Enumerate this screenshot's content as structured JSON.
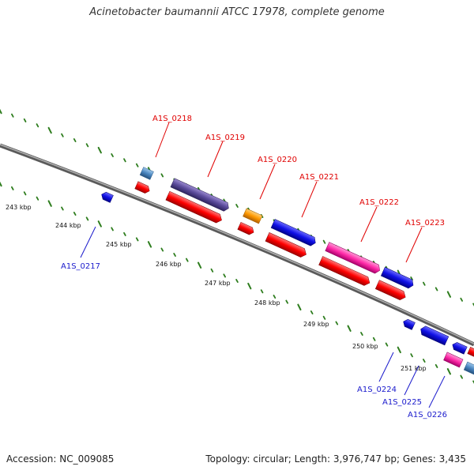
{
  "title": "Acinetobacter baumannii ATCC 17978, complete genome",
  "accession_text": "Accession: NC_009085",
  "topology_text": "Topology: circular; Length: 3,976,747 bp; Genes: 3,435",
  "colors": {
    "backbone": "#888888",
    "tick": "#2e7d1e",
    "label_forward": "#e00000",
    "label_reverse": "#1a1acc",
    "gene_red": "#ff0000",
    "gene_blue": "#1010e6",
    "gene_purple": "#5a4a9a",
    "gene_steelblue": "#4a86c0",
    "gene_orange": "#ff9900",
    "gene_magenta": "#ff2aa8"
  },
  "scale_labels": [
    "243 kbp",
    "244 kbp",
    "245 kbp",
    "246 kbp",
    "247 kbp",
    "248 kbp",
    "249 kbp",
    "250 kbp",
    "251 kbp"
  ],
  "forward_labels": [
    "A1S_0218",
    "A1S_0219",
    "A1S_0220",
    "A1S_0221",
    "A1S_0222",
    "A1S_0223"
  ],
  "reverse_labels": [
    "A1S_0217",
    "A1S_0224",
    "A1S_0225",
    "A1S_0226"
  ]
}
